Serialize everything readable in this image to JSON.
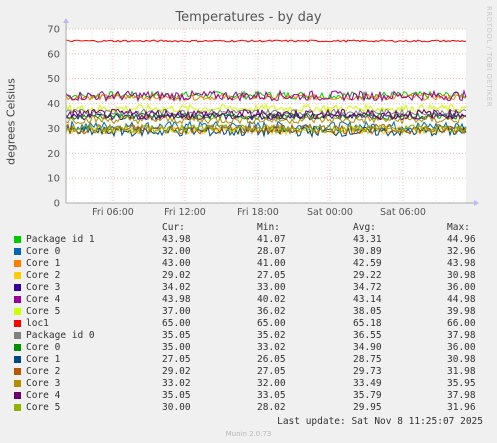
{
  "chart_data": {
    "type": "line",
    "title": "Temperatures - by day",
    "ylabel": "degrees Celsius",
    "ylim": [
      0,
      70
    ],
    "yticks": [
      "0",
      "10",
      "20",
      "30",
      "40",
      "50",
      "60",
      "70"
    ],
    "xticks": [
      "Fri 06:00",
      "Fri 12:00",
      "Fri 18:00",
      "Sat 00:00",
      "Sat 06:00"
    ],
    "grid": true,
    "series": [
      {
        "name": "Package id 1",
        "color": "#00cc00",
        "cur": "43.98",
        "min": "41.07",
        "avg": "43.31",
        "max": "44.96",
        "level": 43.31
      },
      {
        "name": "Core 0",
        "color": "#0066b3",
        "cur": "32.00",
        "min": "28.07",
        "avg": "30.89",
        "max": "32.96",
        "level": 30.89
      },
      {
        "name": "Core 1",
        "color": "#ff8000",
        "cur": "43.00",
        "min": "41.00",
        "avg": "42.59",
        "max": "43.98",
        "level": 42.59
      },
      {
        "name": "Core 2",
        "color": "#ffcc00",
        "cur": "29.02",
        "min": "27.05",
        "avg": "29.22",
        "max": "30.98",
        "level": 29.22
      },
      {
        "name": "Core 3",
        "color": "#330099",
        "cur": "34.02",
        "min": "33.00",
        "avg": "34.72",
        "max": "36.00",
        "level": 34.72
      },
      {
        "name": "Core 4",
        "color": "#990099",
        "cur": "43.98",
        "min": "40.02",
        "avg": "43.14",
        "max": "44.98",
        "level": 43.14
      },
      {
        "name": "Core 5",
        "color": "#ccff00",
        "cur": "37.00",
        "min": "36.02",
        "avg": "38.05",
        "max": "39.98",
        "level": 38.05
      },
      {
        "name": "loc1",
        "color": "#ff0000",
        "cur": "65.00",
        "min": "65.00",
        "avg": "65.18",
        "max": "66.00",
        "level": 65.18
      },
      {
        "name": "Package id 0",
        "color": "#808080",
        "cur": "35.05",
        "min": "35.02",
        "avg": "36.55",
        "max": "37.98",
        "level": 36.55
      },
      {
        "name": "Core 0",
        "color": "#008f00",
        "cur": "35.00",
        "min": "33.02",
        "avg": "34.90",
        "max": "36.00",
        "level": 34.9
      },
      {
        "name": "Core 1",
        "color": "#00487d",
        "cur": "27.05",
        "min": "26.05",
        "avg": "28.75",
        "max": "30.98",
        "level": 28.75
      },
      {
        "name": "Core 2",
        "color": "#b35a00",
        "cur": "29.02",
        "min": "27.05",
        "avg": "29.73",
        "max": "31.98",
        "level": 29.73
      },
      {
        "name": "Core 3",
        "color": "#b38f00",
        "cur": "33.02",
        "min": "32.00",
        "avg": "33.49",
        "max": "35.95",
        "level": 33.49
      },
      {
        "name": "Core 4",
        "color": "#6b006b",
        "cur": "35.05",
        "min": "33.05",
        "avg": "35.79",
        "max": "37.98",
        "level": 35.79
      },
      {
        "name": "Core 5",
        "color": "#8fb300",
        "cur": "30.00",
        "min": "28.02",
        "avg": "29.95",
        "max": "31.96",
        "level": 29.95
      }
    ]
  },
  "legend_headers": {
    "cur": "Cur:",
    "min": "Min:",
    "avg": "Avg:",
    "max": "Max:"
  },
  "watermark": "RRDTOOL / TOBI OETIKER",
  "last_update": "Last update: Sat Nov  8 11:25:07 2025",
  "footer": "Munin 2.0.73"
}
